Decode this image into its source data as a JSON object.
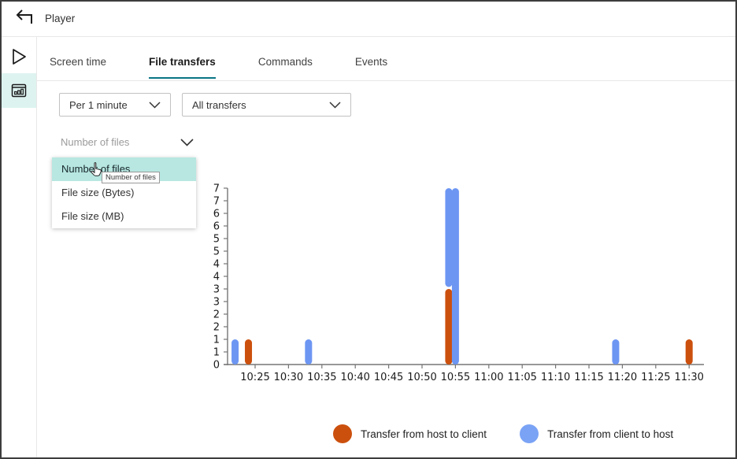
{
  "header": {
    "title": "Player"
  },
  "sidebar": {
    "items": [
      {
        "id": "play",
        "icon": "play-icon",
        "selected": false
      },
      {
        "id": "statistics",
        "icon": "bar-chart-window-icon",
        "selected": true
      }
    ]
  },
  "tabs": [
    {
      "label": "Screen time",
      "active": false
    },
    {
      "label": "File transfers",
      "active": true
    },
    {
      "label": "Commands",
      "active": false
    },
    {
      "label": "Events",
      "active": false
    }
  ],
  "filters": {
    "interval": {
      "value": "Per 1 minute"
    },
    "transfer_type": {
      "value": "All transfers"
    },
    "metric": {
      "value": "Number of files",
      "options": [
        "Number of files",
        "File size (Bytes)",
        "File size (MB)"
      ],
      "highlighted_option": "Number of files",
      "tooltip": "Number of files"
    }
  },
  "chart_data": {
    "type": "bar",
    "title": "",
    "xlabel": "",
    "ylabel": "",
    "x_ticks": [
      "10:25",
      "10:30",
      "10:35",
      "10:40",
      "10:45",
      "10:50",
      "10:55",
      "11:00",
      "11:05",
      "11:10",
      "11:15",
      "11:20",
      "11:25",
      "11:30"
    ],
    "y_axis": {
      "min": 0,
      "max": 7,
      "tick_step": 0.5,
      "tick_labels_bottom_to_top": [
        "0",
        "1",
        "1",
        "2",
        "2",
        "3",
        "3",
        "4",
        "4",
        "5",
        "5",
        "6",
        "6",
        "7",
        "7"
      ]
    },
    "grid": false,
    "series_colors": {
      "host_to_client": "#cc500d",
      "client_to_host": "#6d96f3"
    },
    "bars": [
      {
        "time": "10:22",
        "series": "client_to_host",
        "base": 0,
        "value": 1
      },
      {
        "time": "10:24",
        "series": "host_to_client",
        "base": 0,
        "value": 1
      },
      {
        "time": "10:33",
        "series": "client_to_host",
        "base": 0,
        "value": 1
      },
      {
        "time": "10:54",
        "series": "host_to_client",
        "base": 0,
        "value": 3
      },
      {
        "time": "10:54",
        "series": "client_to_host",
        "base": 3,
        "value": 4
      },
      {
        "time": "10:55",
        "series": "client_to_host",
        "base": 0,
        "value": 7
      },
      {
        "time": "11:19",
        "series": "client_to_host",
        "base": 0,
        "value": 1
      },
      {
        "time": "11:30",
        "series": "host_to_client",
        "base": 0,
        "value": 1
      }
    ],
    "legend": [
      {
        "label": "Transfer from host to client",
        "series": "host_to_client",
        "color": "#cc500d"
      },
      {
        "label": "Transfer from client to host",
        "series": "client_to_host",
        "color": "#7aa3f5"
      }
    ],
    "legend_position": "bottom"
  }
}
